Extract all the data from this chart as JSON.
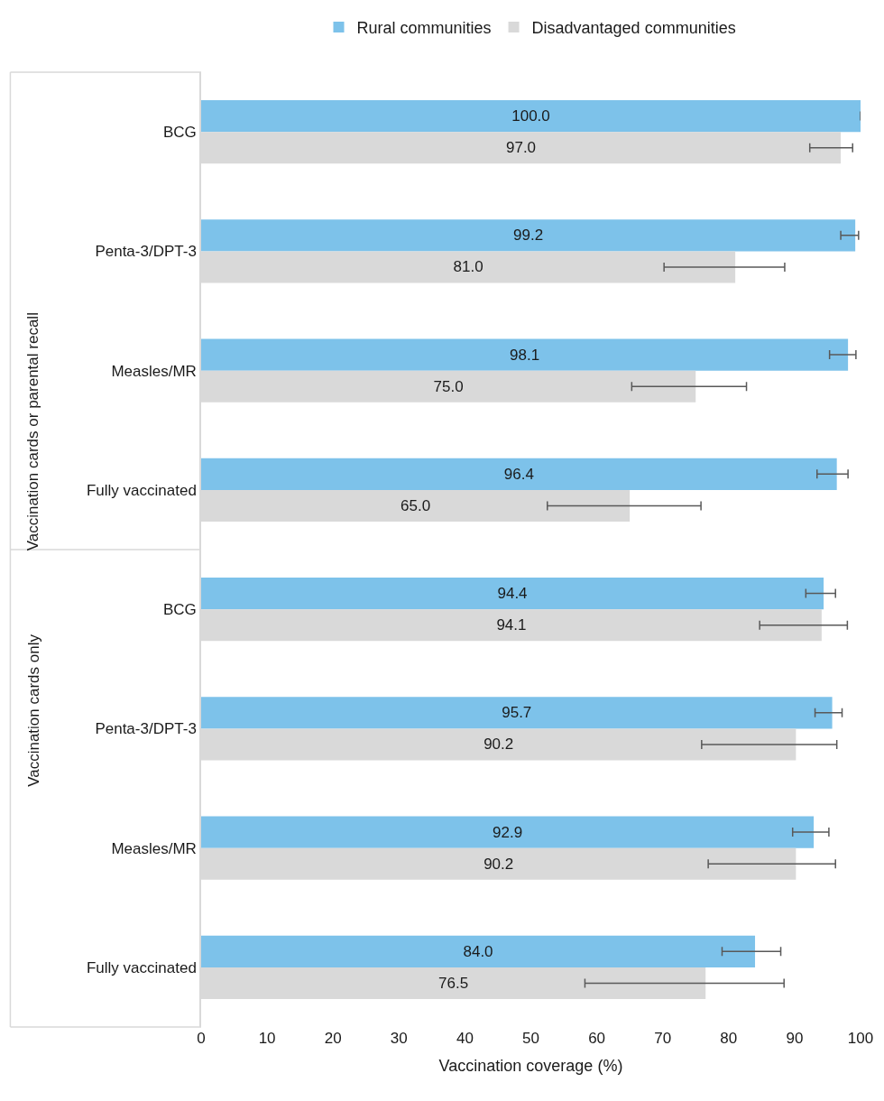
{
  "chart_data": {
    "type": "bar",
    "orientation": "horizontal",
    "xlabel": "Vaccination coverage (%)",
    "categories": [
      "BCG",
      "Penta-3/DPT-3",
      "Measles/MR",
      "Fully vaccinated",
      "BCG",
      "Penta-3/DPT-3",
      "Measles/MR",
      "Fully vaccinated"
    ],
    "annotations": [
      "Vaccination cards or parental recall",
      "Vaccination cards only"
    ],
    "series": [
      {
        "name": "Rural communities",
        "color": "#7dc2ea",
        "values": [
          100.0,
          99.2,
          98.1,
          96.4,
          94.4,
          95.7,
          92.9,
          84.0
        ],
        "value_labels": [
          "100.0",
          "99.2",
          "98.1",
          "96.4",
          "94.4",
          "95.7",
          "92.9",
          "84.0"
        ],
        "errors": [
          [
            100,
            100
          ],
          [
            97.0,
            99.7
          ],
          [
            95.3,
            99.3
          ],
          [
            93.4,
            98.1
          ],
          [
            91.7,
            96.2
          ],
          [
            93.1,
            97.2
          ],
          [
            89.7,
            95.2
          ],
          [
            79.0,
            87.9
          ]
        ]
      },
      {
        "name": "Disadvantaged communities",
        "color": "#d9d9d9",
        "values": [
          97.0,
          81.0,
          75.0,
          65.0,
          94.1,
          90.2,
          90.2,
          76.5
        ],
        "value_labels": [
          "97.0",
          "81.0",
          "75.0",
          "65.0",
          "94.1",
          "90.2",
          "90.2",
          "76.5"
        ],
        "errors": [
          [
            92.3,
            98.8
          ],
          [
            70.2,
            88.5
          ],
          [
            65.3,
            82.7
          ],
          [
            52.5,
            75.8
          ],
          [
            84.7,
            98.0
          ],
          [
            75.9,
            96.4
          ],
          [
            76.9,
            96.2
          ],
          [
            58.2,
            88.4
          ]
        ]
      }
    ],
    "xlim": [
      0,
      100
    ],
    "xticks": [
      0,
      10,
      20,
      30,
      40,
      50,
      60,
      70,
      80,
      90,
      100
    ],
    "grid": false,
    "legend": "top"
  }
}
